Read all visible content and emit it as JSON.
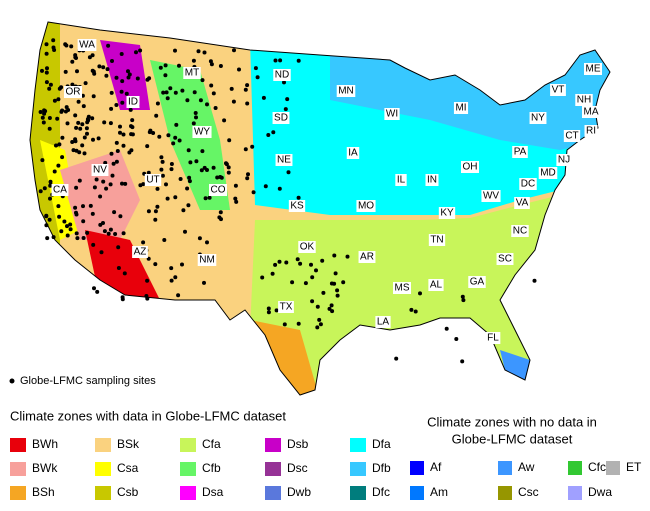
{
  "state_labels": [
    "WA",
    "OR",
    "CA",
    "NV",
    "ID",
    "MT",
    "WY",
    "UT",
    "CO",
    "AZ",
    "NM",
    "ND",
    "SD",
    "NE",
    "KS",
    "OK",
    "TX",
    "MN",
    "IA",
    "MO",
    "AR",
    "LA",
    "WI",
    "IL",
    "MS",
    "MI",
    "IN",
    "KY",
    "TN",
    "AL",
    "OH",
    "GA",
    "FL",
    "SC",
    "NC",
    "VA",
    "WV",
    "PA",
    "NY",
    "DC",
    "MD",
    "NJ",
    "VT",
    "NH",
    "ME",
    "MA",
    "CT",
    "RI"
  ],
  "sites_legend": "Globe-LFMC sampling sites",
  "legend_with_data": {
    "title": "Climate zones with data in Globe-LFMC dataset",
    "items": [
      {
        "label": "BWh",
        "color": "#e8000b"
      },
      {
        "label": "BSk",
        "color": "#fad27f"
      },
      {
        "label": "Cfa",
        "color": "#c8f55a"
      },
      {
        "label": "Dsb",
        "color": "#c800c8"
      },
      {
        "label": "Dfa",
        "color": "#00ffff"
      },
      {
        "label": "BWk",
        "color": "#f7a09b"
      },
      {
        "label": "Csa",
        "color": "#ffff00"
      },
      {
        "label": "Cfb",
        "color": "#66f566"
      },
      {
        "label": "Dsc",
        "color": "#963296"
      },
      {
        "label": "Dfb",
        "color": "#37c8ff"
      },
      {
        "label": "BSh",
        "color": "#f5a623"
      },
      {
        "label": "Csb",
        "color": "#c8c800"
      },
      {
        "label": "Dsa",
        "color": "#ff00ff"
      },
      {
        "label": "Dwb",
        "color": "#5a78dc"
      },
      {
        "label": "Dfc",
        "color": "#007d7d"
      }
    ]
  },
  "legend_no_data": {
    "title_lines": [
      "Climate zones with no data in",
      "Globe-LFMC dataset"
    ],
    "items": [
      {
        "label": "Af",
        "color": "#0000ff"
      },
      {
        "label": "Aw",
        "color": "#3c96ff"
      },
      {
        "label": "Cfc",
        "color": "#32c832"
      },
      {
        "label": "ET",
        "color": "#b2b2b2"
      },
      {
        "label": "Am",
        "color": "#0078ff"
      },
      {
        "label": "Csc",
        "color": "#969600"
      },
      {
        "label": "Dwa",
        "color": "#a0a0ff"
      }
    ]
  }
}
